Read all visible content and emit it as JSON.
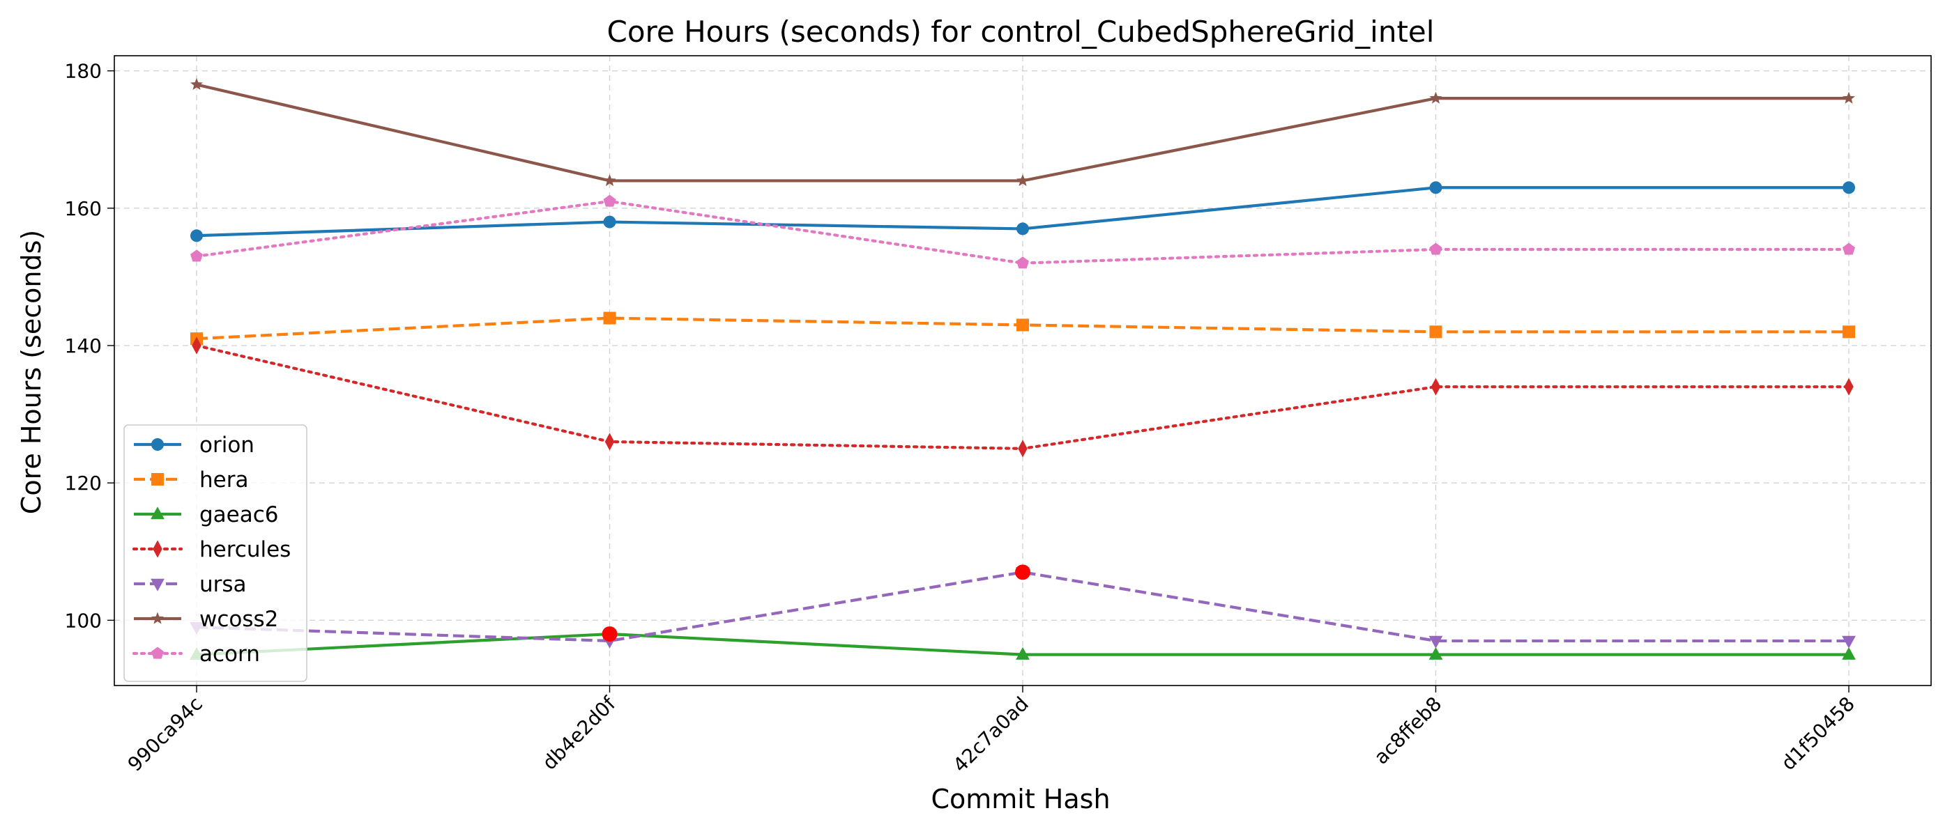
{
  "chart_data": {
    "type": "line",
    "title": "Core Hours (seconds) for control_CubedSphereGrid_intel",
    "xlabel": "Commit Hash",
    "ylabel": "Core Hours (seconds)",
    "categories": [
      "990ca94c",
      "db4e2d0f",
      "42c7a0ad",
      "ac8ffeb8",
      "d1f50458"
    ],
    "ylim": [
      90.5,
      182.2
    ],
    "yticks": [
      100,
      120,
      140,
      160,
      180
    ],
    "grid": true,
    "legend_position": "lower-left",
    "series": [
      {
        "name": "orion",
        "values": [
          156,
          158,
          157,
          163,
          163
        ],
        "color": "#1f77b4",
        "dash": "solid",
        "marker": "circle"
      },
      {
        "name": "hera",
        "values": [
          141,
          144,
          143,
          142,
          142
        ],
        "color": "#ff7f0e",
        "dash": "dashed",
        "marker": "square"
      },
      {
        "name": "gaeac6",
        "values": [
          95,
          98,
          95,
          95,
          95
        ],
        "color": "#2ca02c",
        "dash": "solid",
        "marker": "triangle-up"
      },
      {
        "name": "hercules",
        "values": [
          140,
          126,
          125,
          134,
          134
        ],
        "color": "#d62728",
        "dash": "dotted",
        "marker": "thin-diamond"
      },
      {
        "name": "ursa",
        "values": [
          99,
          97,
          107,
          97,
          97
        ],
        "color": "#9467bd",
        "dash": "dashed",
        "marker": "triangle-down"
      },
      {
        "name": "wcoss2",
        "values": [
          178,
          164,
          164,
          176,
          176
        ],
        "color": "#8c564b",
        "dash": "solid",
        "marker": "star"
      },
      {
        "name": "acorn",
        "values": [
          153,
          161,
          152,
          154,
          154
        ],
        "color": "#e377c2",
        "dash": "dotted",
        "marker": "pentagon"
      }
    ],
    "highlights": [
      {
        "series": "gaeac6",
        "category": "db4e2d0f",
        "value": 98,
        "color": "#ff0000"
      },
      {
        "series": "ursa",
        "category": "42c7a0ad",
        "value": 107,
        "color": "#ff0000"
      }
    ]
  }
}
